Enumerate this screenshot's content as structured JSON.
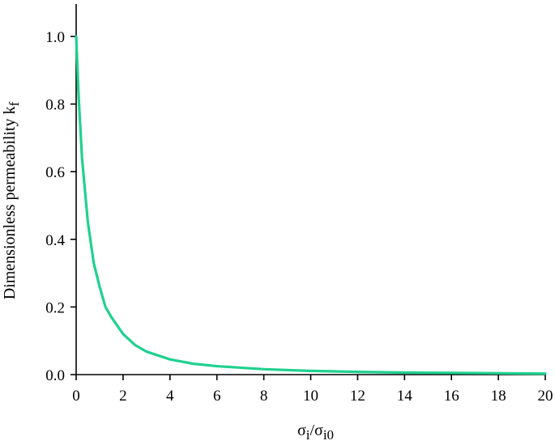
{
  "chart_data": {
    "type": "line",
    "xlabel": {
      "main": "σ",
      "sub1": "i",
      "mid": "/σ",
      "sub2": "i0"
    },
    "ylabel": {
      "main": "Dimensionless permeability  k",
      "sub": "f"
    },
    "xlim": [
      0,
      20
    ],
    "ylim": [
      0,
      1.1
    ],
    "x_ticks": [
      0,
      2,
      4,
      6,
      8,
      10,
      12,
      14,
      16,
      18,
      20
    ],
    "x_tick_labels": [
      "0",
      "2",
      "4",
      "6",
      "8",
      "10",
      "12",
      "14",
      "16",
      "18",
      "20"
    ],
    "y_ticks": [
      0,
      0.2,
      0.4,
      0.6,
      0.8,
      1.0
    ],
    "y_tick_labels": [
      "0.0",
      "0.2",
      "0.4",
      "0.6",
      "0.8",
      "1.0"
    ],
    "grid": false,
    "series": [
      {
        "color": "#1fd18f",
        "x": [
          0,
          0.1,
          0.25,
          0.5,
          0.75,
          1,
          1.25,
          1.5,
          2,
          2.5,
          3,
          4,
          5,
          6,
          8,
          10,
          12,
          14,
          16,
          18,
          20
        ],
        "y": [
          1.0,
          0.83,
          0.64,
          0.45,
          0.33,
          0.26,
          0.2,
          0.17,
          0.12,
          0.088,
          0.068,
          0.045,
          0.032,
          0.025,
          0.016,
          0.011,
          0.008,
          0.006,
          0.005,
          0.004,
          0.003
        ]
      }
    ]
  }
}
